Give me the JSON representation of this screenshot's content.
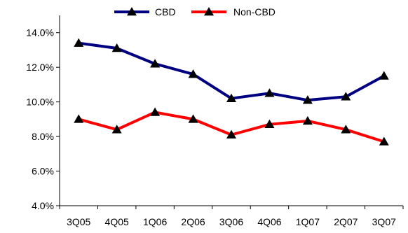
{
  "chart_data": {
    "type": "line",
    "categories": [
      "3Q05",
      "4Q05",
      "1Q06",
      "2Q06",
      "3Q06",
      "4Q06",
      "1Q07",
      "2Q07",
      "3Q07"
    ],
    "series": [
      {
        "name": "CBD",
        "color": "#000080",
        "values": [
          13.4,
          13.1,
          12.2,
          11.6,
          10.2,
          10.5,
          10.1,
          10.3,
          11.5
        ]
      },
      {
        "name": "Non-CBD",
        "color": "#ff0000",
        "values": [
          9.0,
          8.4,
          9.4,
          9.0,
          8.1,
          8.7,
          8.9,
          8.4,
          7.7
        ]
      }
    ],
    "y_ticks": [
      "4.0%",
      "6.0%",
      "8.0%",
      "10.0%",
      "12.0%",
      "14.0%"
    ],
    "ylim": [
      4,
      15
    ],
    "marker": "triangle",
    "marker_color": "#000000",
    "legend_position": "top",
    "grid": false,
    "title": "",
    "xlabel": "",
    "ylabel": ""
  }
}
